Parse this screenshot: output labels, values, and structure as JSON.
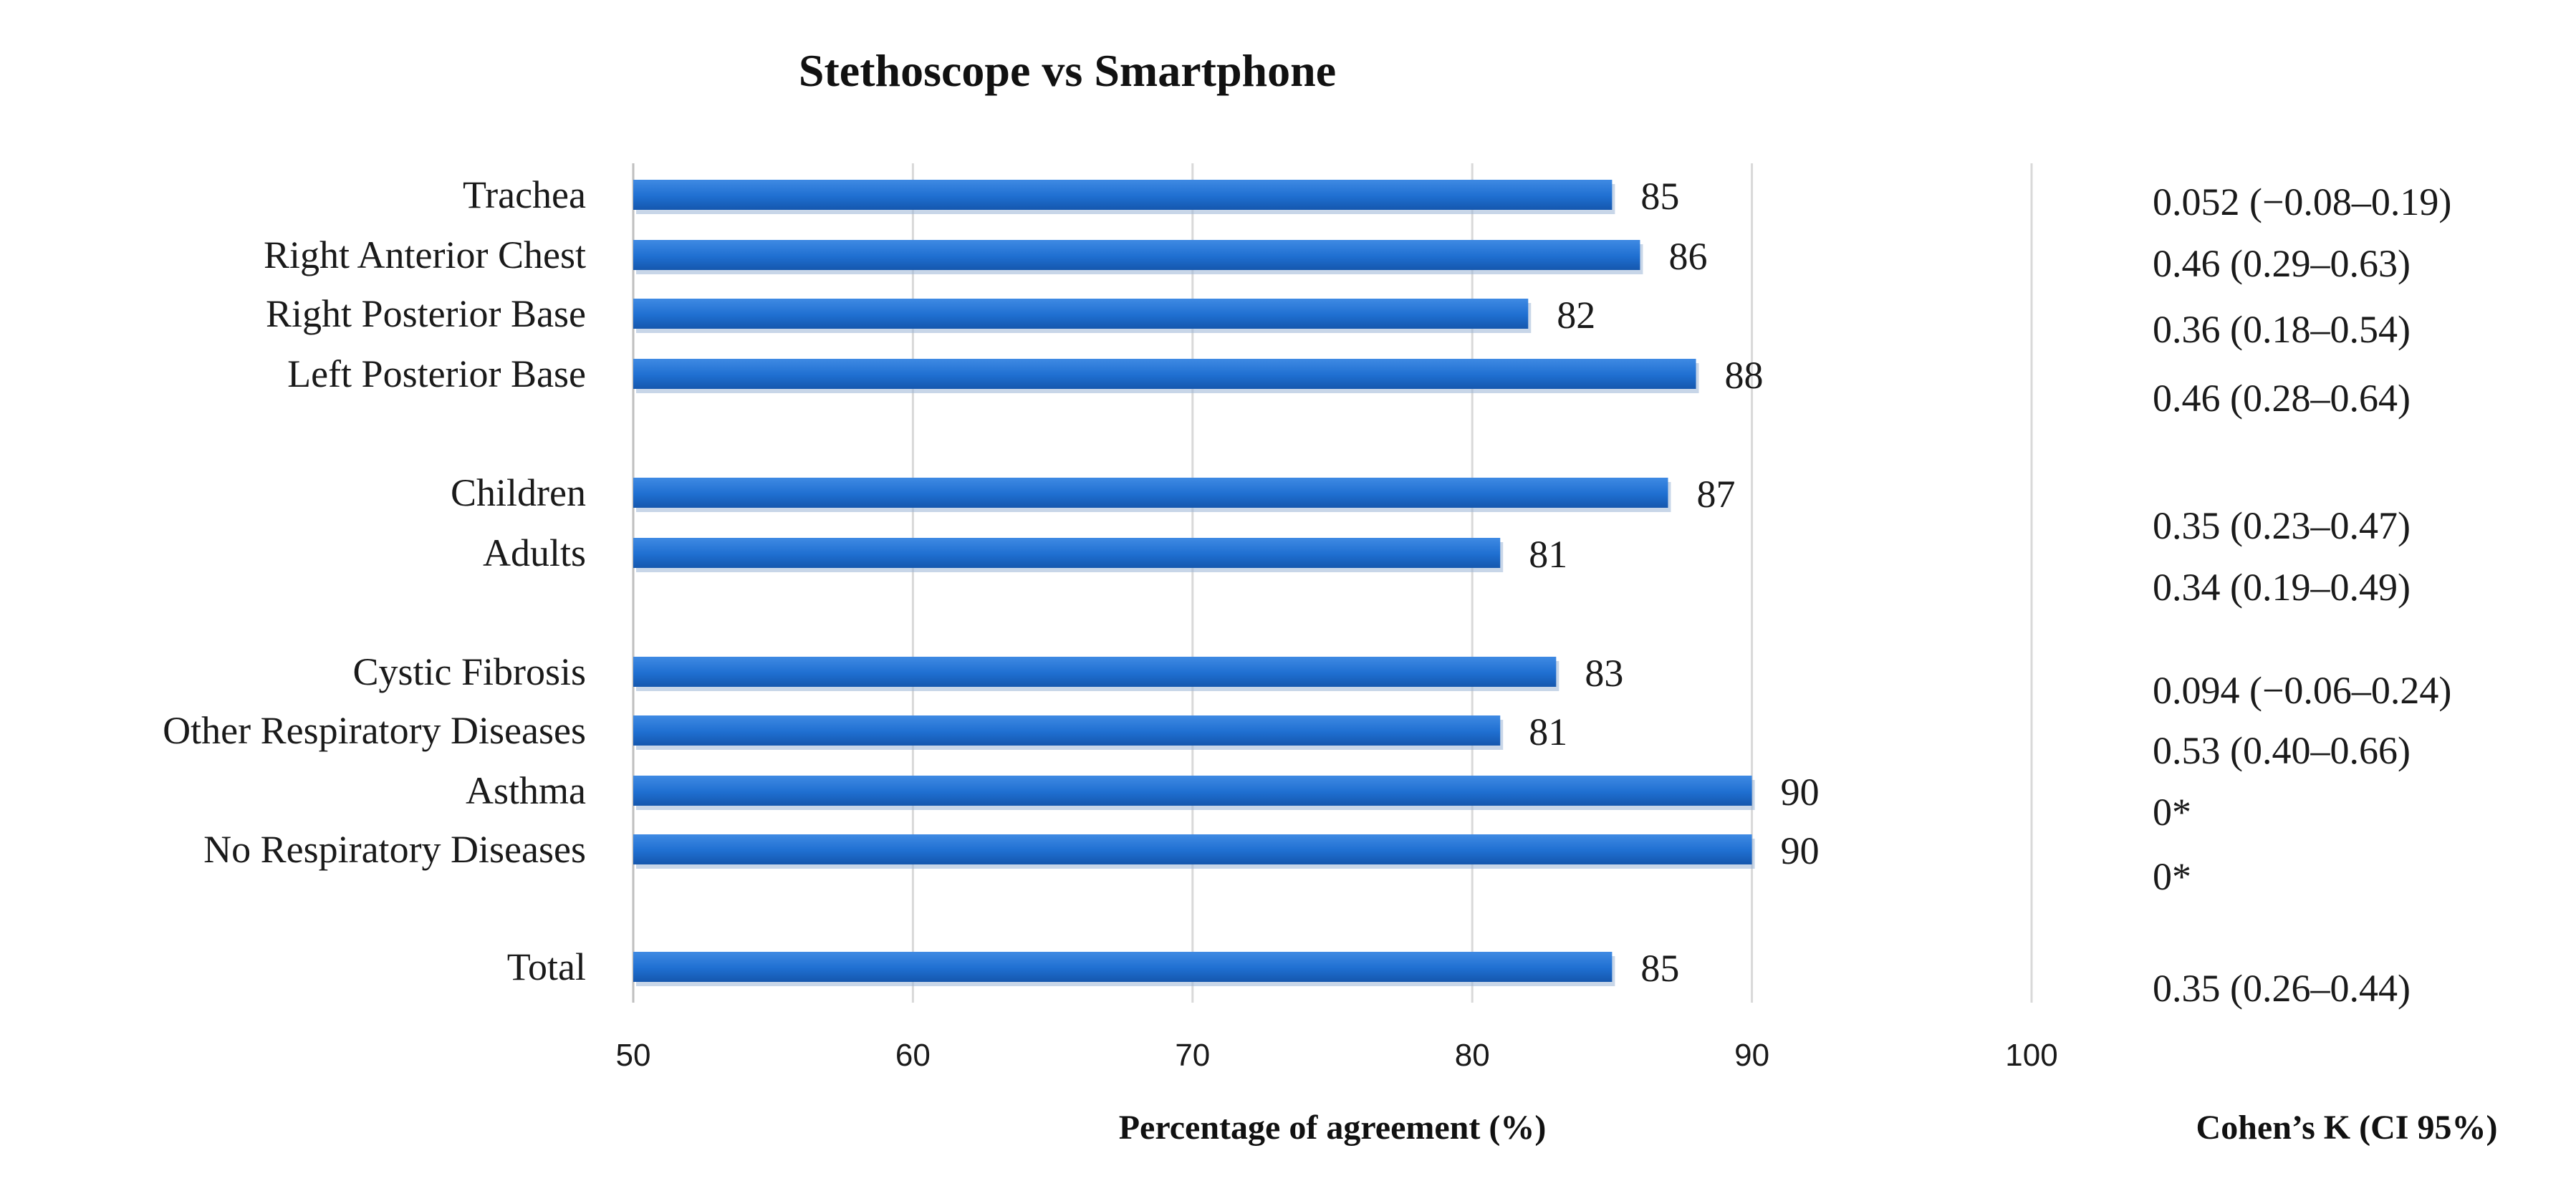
{
  "chart_data": {
    "type": "bar",
    "orientation": "horizontal",
    "title": "Stethoscope vs Smartphone",
    "xlabel": "Percentage of agreement (%)",
    "kappa_header": "Cohen’s K (CI 95%)",
    "xlim": [
      50,
      100
    ],
    "xticks": [
      "50",
      "60",
      "70",
      "80",
      "90",
      "100"
    ],
    "grid": true,
    "bar_color": "#1f6fd1",
    "categories": [
      "Trachea",
      "Right Anterior Chest",
      "Right Posterior Base",
      "Left Posterior Base",
      "Children",
      "Adults",
      "Cystic Fibrosis",
      "Other Respiratory Diseases",
      "Asthma",
      "No Respiratory Diseases",
      "Total"
    ],
    "values": [
      85,
      86,
      82,
      88,
      87,
      81,
      83,
      81,
      90,
      90,
      85
    ],
    "value_labels": [
      "85",
      "86",
      "82",
      "88",
      "87",
      "81",
      "83",
      "81",
      "90",
      "90",
      "85"
    ],
    "cohens_kappa": [
      "0.052 (−0.08–0.19)",
      "0.46 (0.29–0.63)",
      "0.36 (0.18–0.54)",
      "0.46 (0.28–0.64)",
      "0.35 (0.23–0.47)",
      "0.34 (0.19–0.49)",
      "0.094 (−0.06–0.24)",
      "0.53 (0.40–0.66)",
      "0*",
      "0*",
      "0.35 (0.26–0.44)"
    ]
  }
}
